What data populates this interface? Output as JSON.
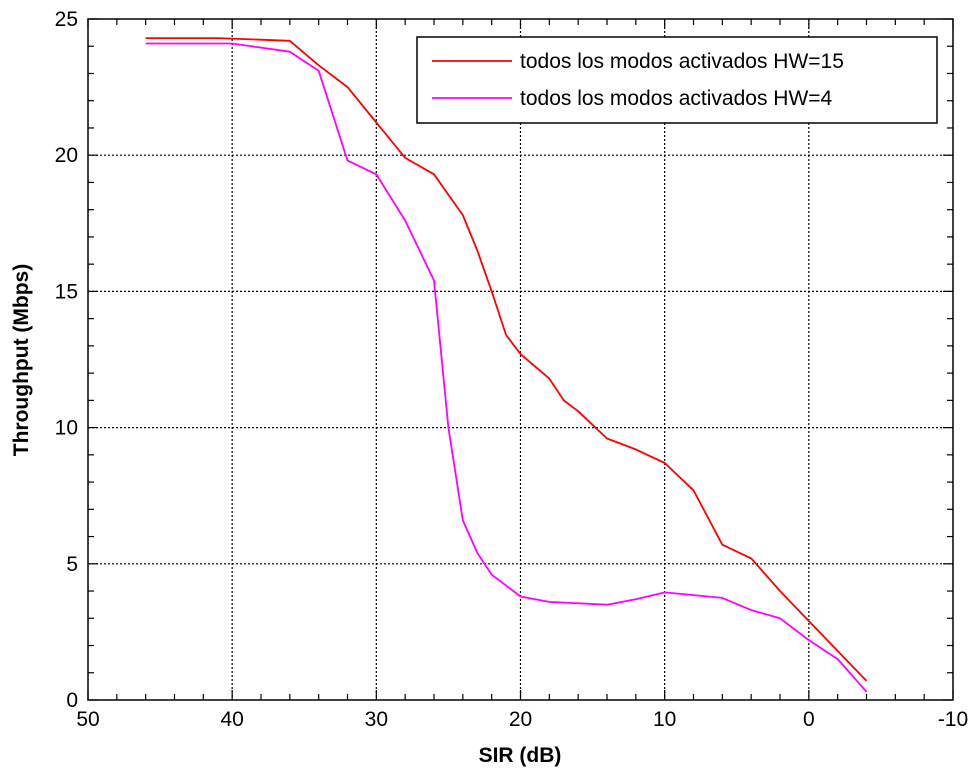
{
  "chart_data": {
    "type": "line",
    "title": "",
    "xlabel": "SIR (dB)",
    "ylabel": "Throughput (Mbps)",
    "xlim": [
      50,
      -10
    ],
    "ylim": [
      0,
      25
    ],
    "x_reversed": true,
    "grid": true,
    "legend_position": "top-right",
    "x_ticks": [
      50,
      40,
      30,
      20,
      10,
      0,
      -10
    ],
    "x_tick_labels": [
      "50",
      "40",
      "30",
      "20",
      "10",
      "0",
      "-10"
    ],
    "y_ticks": [
      0,
      5,
      10,
      15,
      20,
      25
    ],
    "y_tick_labels": [
      "0",
      "5",
      "10",
      "15",
      "20",
      "25"
    ],
    "series": [
      {
        "name": "todos los modos activados HW=15",
        "color": "#ff0000",
        "points": [
          [
            46,
            24.3
          ],
          [
            41,
            24.3
          ],
          [
            36,
            24.2
          ],
          [
            34,
            23.3
          ],
          [
            32,
            22.5
          ],
          [
            30,
            21.2
          ],
          [
            28,
            19.9
          ],
          [
            26,
            19.3
          ],
          [
            24,
            17.8
          ],
          [
            23,
            16.5
          ],
          [
            22,
            15.0
          ],
          [
            21,
            13.4
          ],
          [
            20,
            12.7
          ],
          [
            18,
            11.8
          ],
          [
            17,
            11.0
          ],
          [
            16,
            10.6
          ],
          [
            14,
            9.6
          ],
          [
            12,
            9.2
          ],
          [
            10,
            8.7
          ],
          [
            8,
            7.7
          ],
          [
            6,
            5.7
          ],
          [
            4,
            5.2
          ],
          [
            2,
            4.0
          ],
          [
            0,
            2.9
          ],
          [
            -2,
            1.8
          ],
          [
            -4,
            0.7
          ]
        ]
      },
      {
        "name": "todos los modos activados HW=4",
        "color": "#ff00ff",
        "points": [
          [
            46,
            24.1
          ],
          [
            40,
            24.1
          ],
          [
            36,
            23.8
          ],
          [
            34,
            23.1
          ],
          [
            32,
            19.8
          ],
          [
            30,
            19.3
          ],
          [
            28,
            17.6
          ],
          [
            26,
            15.4
          ],
          [
            25,
            10.0
          ],
          [
            24,
            6.6
          ],
          [
            23,
            5.4
          ],
          [
            22,
            4.6
          ],
          [
            20,
            3.8
          ],
          [
            18,
            3.6
          ],
          [
            14,
            3.5
          ],
          [
            12,
            3.7
          ],
          [
            10,
            3.95
          ],
          [
            6,
            3.75
          ],
          [
            4,
            3.3
          ],
          [
            2,
            3.0
          ],
          [
            0,
            2.2
          ],
          [
            -2,
            1.5
          ],
          [
            -4,
            0.3
          ]
        ]
      }
    ]
  }
}
